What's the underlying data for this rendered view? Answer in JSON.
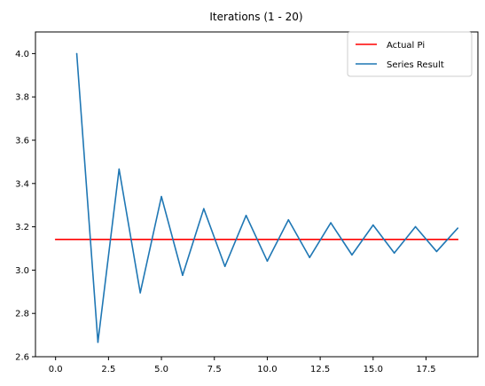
{
  "chart_data": {
    "type": "line",
    "title": "Iterations (1 - 20)",
    "xlabel": "",
    "ylabel": "",
    "xlim": [
      -0.95,
      19.95
    ],
    "ylim": [
      2.6,
      4.1
    ],
    "xticks": [
      0.0,
      2.5,
      5.0,
      7.5,
      10.0,
      12.5,
      15.0,
      17.5
    ],
    "xtick_labels": [
      "0.0",
      "2.5",
      "5.0",
      "7.5",
      "10.0",
      "12.5",
      "15.0",
      "17.5"
    ],
    "yticks": [
      2.6,
      2.8,
      3.0,
      3.2,
      3.4,
      3.6,
      3.8,
      4.0
    ],
    "ytick_labels": [
      "2.6",
      "2.8",
      "3.0",
      "3.2",
      "3.4",
      "3.6",
      "3.8",
      "4.0"
    ],
    "grid": false,
    "legend_position": "top-right",
    "series": [
      {
        "name": "Actual Pi",
        "color": "#ff0000",
        "x": [
          0,
          19
        ],
        "y": [
          3.14159,
          3.14159
        ]
      },
      {
        "name": "Series Result",
        "color": "#1f77b4",
        "x": [
          1,
          2,
          3,
          4,
          5,
          6,
          7,
          8,
          9,
          10,
          11,
          12,
          13,
          14,
          15,
          16,
          17,
          18,
          19
        ],
        "y": [
          4.0,
          2.6667,
          3.4667,
          2.8952,
          3.3397,
          2.976,
          3.2837,
          3.0171,
          3.2524,
          3.0418,
          3.2323,
          3.0584,
          3.2184,
          3.0703,
          3.2082,
          3.0792,
          3.2004,
          3.086,
          3.1941
        ]
      }
    ]
  }
}
